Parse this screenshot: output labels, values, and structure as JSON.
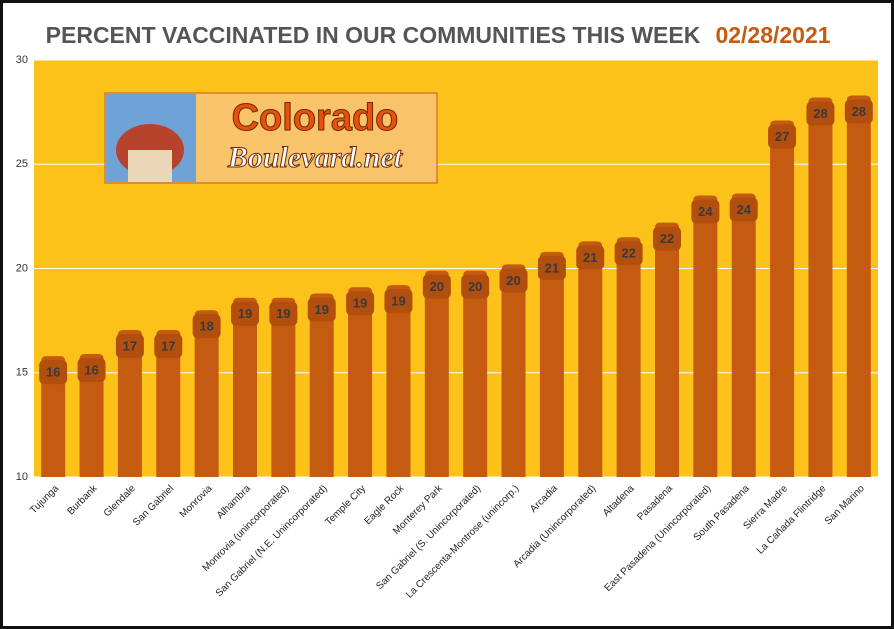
{
  "chart_data": {
    "type": "bar",
    "title": "PERCENT VACCINATED IN OUR COMMUNITIES THIS WEEK",
    "subtitle": "02/28/2021",
    "categories": [
      "Tujunga",
      "Burbank",
      "Glendale",
      "San Gabriel",
      "Monrovia",
      "Alhambra",
      "Monrovia (unincorporated)",
      "San Gabriel (N.E. Unincorporated)",
      "Temple City",
      "Eagle Rock",
      "Monterey Park",
      "San Gabriel (S. Unincorporated)",
      "La Crescenta-Montrose (unincorp.)",
      "Arcadia",
      "Arcadia (Unincorporated)",
      "Altadena",
      "Pasadena",
      "East Pasadena (Unincorporated)",
      "South Pasadena",
      "Sierra Madre",
      "La Cañada Flintridge",
      "San Marino"
    ],
    "values": [
      15.8,
      15.9,
      17.05,
      17.05,
      18.0,
      18.6,
      18.6,
      18.8,
      19.1,
      19.2,
      19.9,
      19.9,
      20.2,
      20.8,
      21.3,
      21.5,
      22.2,
      23.5,
      23.6,
      27.1,
      28.2,
      28.3
    ],
    "value_labels": [
      "16",
      "16",
      "17",
      "17",
      "18",
      "19",
      "19",
      "19",
      "19",
      "19",
      "20",
      "20",
      "20",
      "21",
      "21",
      "22",
      "22",
      "24",
      "24",
      "27",
      "28",
      "28"
    ],
    "color": "#c55a11",
    "ylim": [
      10,
      30
    ],
    "yticks": [
      10,
      15,
      20,
      25,
      30
    ],
    "grid": true
  },
  "logo": {
    "name": "Colorado",
    "tagline": "Boulevard.net"
  }
}
